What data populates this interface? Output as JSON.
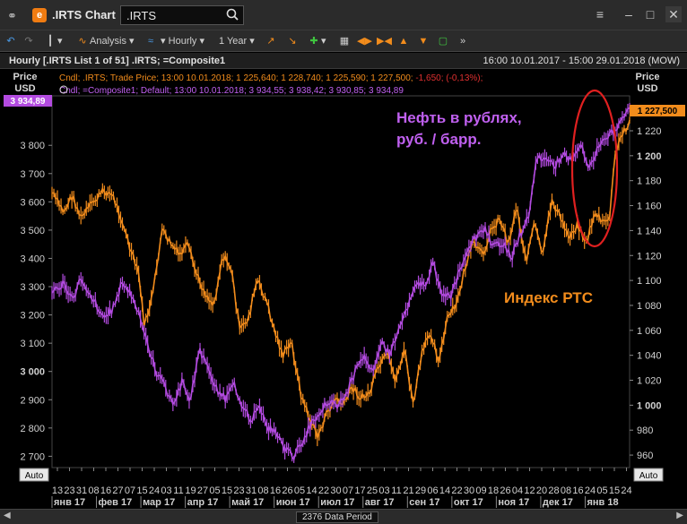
{
  "window": {
    "title": ".IRTS Chart",
    "search_value": ".IRTS"
  },
  "toolbar": {
    "analysis_label": "Analysis",
    "interval_label": "Hourly",
    "range_label": "1 Year"
  },
  "infobar": {
    "left": "Hourly [.IRTS List 1 of 51] .IRTS; =Composite1",
    "right": "16:00 10.01.2017 - 15:00 29.01.2018 (MOW)"
  },
  "legend": {
    "line1": "Cndl; .IRTS; Trade Price; 13:00 10.01.2018; 1 225,640; 1 228,740; 1 225,590; 1 227,500;",
    "line1_change": "-1,650; (-0,13%);",
    "line2": "Cndl; =Composite1; Default; 13:00 10.01.2018; 3 934,55; 3 938,42; 3 930,85; 3 934,89"
  },
  "bottom": {
    "period": "2376 Data Period"
  },
  "colors": {
    "rts": "#f28c1c",
    "oil": "#b34be0",
    "ellipse": "#e02020"
  },
  "chart_data": {
    "type": "line",
    "left_axis": {
      "title_line1": "Price",
      "title_line2": "USD",
      "ticks": [
        2700,
        2800,
        2900,
        3000,
        3100,
        3200,
        3300,
        3400,
        3500,
        3600,
        3700,
        3800
      ],
      "tick_labels": [
        "2 700",
        "2 800",
        "2 900",
        "3 000",
        "3 100",
        "3 200",
        "3 300",
        "3 400",
        "3 500",
        "3 600",
        "3 700",
        "3 800"
      ],
      "current_label": "3 934,89",
      "ylim": [
        2660,
        3975
      ],
      "auto_label": "Auto"
    },
    "right_axis": {
      "title_line1": "Price",
      "title_line2": "USD",
      "ticks": [
        960,
        980,
        1000,
        1020,
        1040,
        1060,
        1080,
        1100,
        1120,
        1140,
        1160,
        1180,
        1200,
        1220
      ],
      "tick_labels": [
        "960",
        "980",
        "1 000",
        "1 020",
        "1 040",
        "1 060",
        "1 080",
        "1 100",
        "1 120",
        "1 140",
        "1 160",
        "1 180",
        "1 200",
        "1 220"
      ],
      "current_label": "1 227,500",
      "ylim": [
        950,
        1248
      ],
      "auto_label": "Auto"
    },
    "x_axis": {
      "day_labels": [
        "13",
        "23",
        "31",
        "08",
        "16",
        "27",
        "07",
        "15",
        "24",
        "03",
        "11",
        "19",
        "27",
        "05",
        "15",
        "23",
        "31",
        "08",
        "16",
        "26",
        "05",
        "14",
        "22",
        "30",
        "07",
        "17",
        "25",
        "03",
        "11",
        "21",
        "29",
        "06",
        "14",
        "22",
        "30",
        "09",
        "18",
        "26",
        "04",
        "12",
        "20",
        "28",
        "08",
        "16",
        "24",
        "05",
        "15",
        "24"
      ],
      "month_labels": [
        "янв 17",
        "фев 17",
        "мар 17",
        "апр 17",
        "май 17",
        "июн 17",
        "июл 17",
        "авг 17",
        "сен 17",
        "окт 17",
        "ноя 17",
        "дек 17",
        "янв 18"
      ]
    },
    "series": [
      {
        "name": "Индекс РТС",
        "axis": "right",
        "x": [
          0,
          0.02,
          0.035,
          0.05,
          0.07,
          0.09,
          0.105,
          0.12,
          0.135,
          0.15,
          0.16,
          0.175,
          0.19,
          0.205,
          0.22,
          0.235,
          0.25,
          0.265,
          0.28,
          0.295,
          0.31,
          0.325,
          0.34,
          0.355,
          0.37,
          0.385,
          0.4,
          0.415,
          0.43,
          0.445,
          0.46,
          0.475,
          0.49,
          0.505,
          0.52,
          0.535,
          0.55,
          0.565,
          0.58,
          0.595,
          0.61,
          0.625,
          0.64,
          0.655,
          0.67,
          0.685,
          0.7,
          0.715,
          0.73,
          0.745,
          0.76,
          0.775,
          0.79,
          0.805,
          0.82,
          0.835,
          0.85,
          0.865,
          0.88,
          0.895,
          0.91,
          0.925,
          0.94,
          0.955,
          0.965,
          0.975,
          0.985,
          1.0
        ],
        "values": [
          1170,
          1155,
          1168,
          1150,
          1162,
          1172,
          1168,
          1150,
          1125,
          1105,
          1063,
          1090,
          1140,
          1130,
          1120,
          1128,
          1105,
          1090,
          1080,
          1120,
          1110,
          1060,
          1070,
          1100,
          1085,
          1060,
          1040,
          1050,
          1010,
          990,
          975,
          992,
          1005,
          1000,
          1015,
          1005,
          1010,
          1030,
          1040,
          1020,
          1045,
          1000,
          1040,
          1060,
          1035,
          1070,
          1080,
          1110,
          1130,
          1120,
          1140,
          1150,
          1130,
          1160,
          1115,
          1145,
          1120,
          1165,
          1150,
          1135,
          1145,
          1130,
          1155,
          1145,
          1150,
          1200,
          1215,
          1228
        ]
      },
      {
        "name": "Нефть в рублях, руб. / барр.",
        "axis": "left",
        "x": [
          0,
          0.02,
          0.035,
          0.05,
          0.07,
          0.09,
          0.105,
          0.12,
          0.135,
          0.15,
          0.165,
          0.18,
          0.195,
          0.21,
          0.225,
          0.24,
          0.255,
          0.27,
          0.285,
          0.3,
          0.315,
          0.33,
          0.345,
          0.36,
          0.375,
          0.39,
          0.405,
          0.42,
          0.435,
          0.45,
          0.465,
          0.48,
          0.495,
          0.51,
          0.525,
          0.54,
          0.555,
          0.57,
          0.585,
          0.6,
          0.615,
          0.63,
          0.645,
          0.66,
          0.675,
          0.69,
          0.705,
          0.72,
          0.735,
          0.75,
          0.765,
          0.78,
          0.795,
          0.81,
          0.825,
          0.84,
          0.855,
          0.87,
          0.885,
          0.9,
          0.915,
          0.93,
          0.945,
          0.96,
          0.975,
          0.99,
          1.0
        ],
        "values": [
          3280,
          3310,
          3250,
          3330,
          3260,
          3190,
          3220,
          3310,
          3280,
          3200,
          3100,
          3000,
          2950,
          2880,
          2960,
          2900,
          3080,
          3010,
          2940,
          2900,
          2950,
          2880,
          2830,
          2870,
          2800,
          2780,
          2720,
          2700,
          2760,
          2820,
          2860,
          2900,
          2880,
          2920,
          3000,
          3050,
          3010,
          3100,
          3060,
          3150,
          3230,
          3320,
          3300,
          3380,
          3280,
          3260,
          3350,
          3420,
          3480,
          3500,
          3440,
          3460,
          3400,
          3480,
          3550,
          3760,
          3750,
          3720,
          3780,
          3740,
          3800,
          3720,
          3790,
          3820,
          3860,
          3900,
          3935
        ]
      }
    ],
    "annotations": [
      {
        "text": "Нефть в рублях, руб. / барр.",
        "line1": "Нефть в рублях,",
        "line2": "руб. / барр.",
        "series": "oil"
      },
      {
        "text": "Индекс РТС",
        "series": "rts"
      }
    ]
  }
}
